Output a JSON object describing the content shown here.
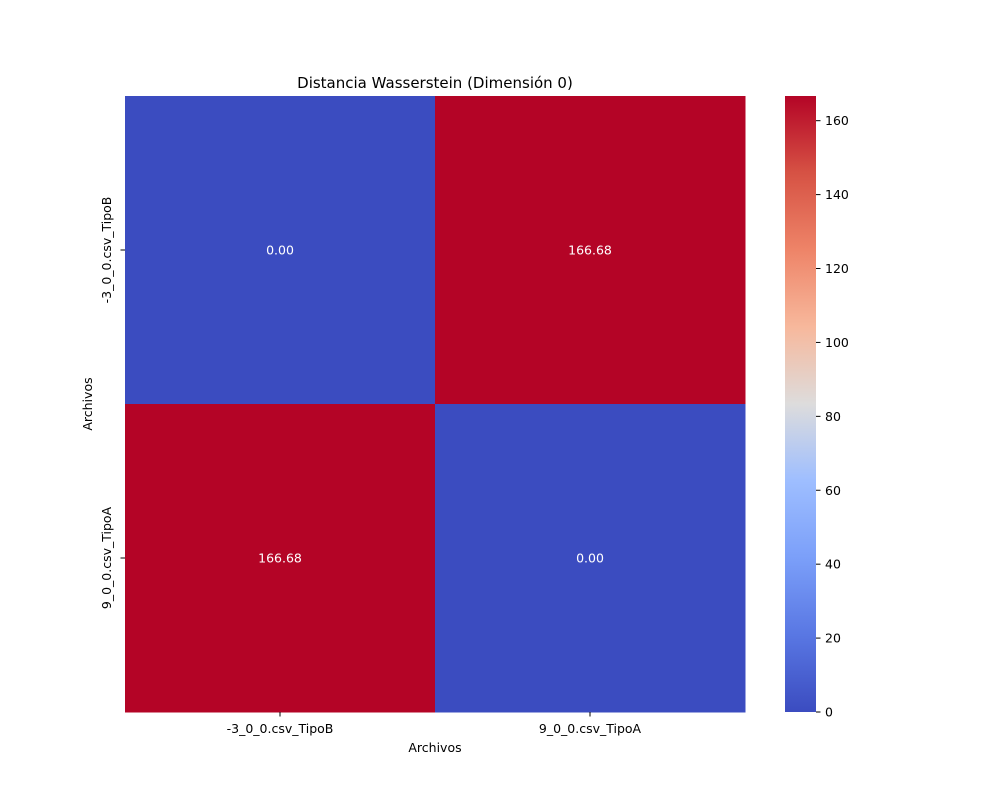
{
  "chart_data": {
    "type": "heatmap",
    "title": "Distancia Wasserstein (Dimensión 0)",
    "xlabel": "Archivos",
    "ylabel": "Archivos",
    "x_categories": [
      "-3_0_0.csv_TipoB",
      "9_0_0.csv_TipoA"
    ],
    "y_categories": [
      "-3_0_0.csv_TipoB",
      "9_0_0.csv_TipoA"
    ],
    "values": [
      [
        0.0,
        166.68
      ],
      [
        166.68,
        0.0
      ]
    ],
    "cell_labels": [
      [
        "0.00",
        "166.68"
      ],
      [
        "166.68",
        "0.00"
      ]
    ],
    "colormap": "coolwarm",
    "vmin": 0,
    "vmax": 166.68,
    "colorbar_ticks": [
      0,
      20,
      40,
      60,
      80,
      100,
      120,
      140,
      160
    ],
    "colorbar_tick_labels": [
      "0",
      "20",
      "40",
      "60",
      "80",
      "100",
      "120",
      "140",
      "160"
    ]
  }
}
